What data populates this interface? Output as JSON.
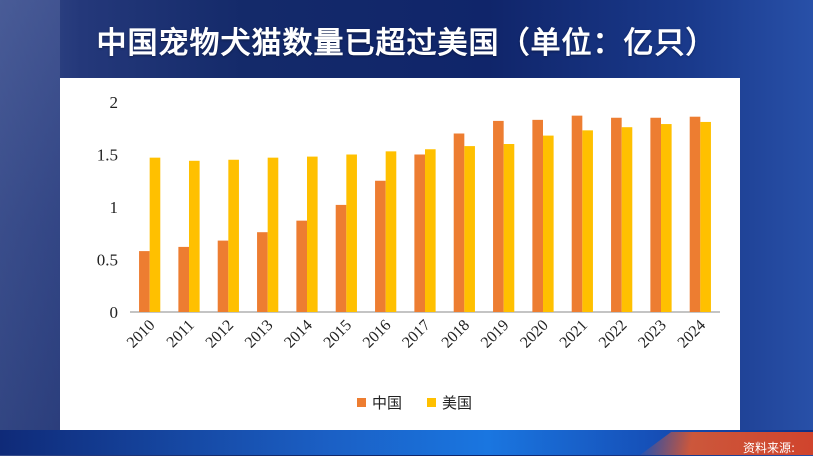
{
  "title": "中国宠物犬猫数量已超过美国（单位：亿只）",
  "source_note": "资料来源:",
  "colors": {
    "china": "#ED7D31",
    "usa": "#FFC000",
    "axis": "#8a8a8a",
    "text": "#222222"
  },
  "chart_data": {
    "type": "bar",
    "title": "中国宠物犬猫数量已超过美国（单位：亿只）",
    "xlabel": "",
    "ylabel": "",
    "categories": [
      "2010",
      "2011",
      "2012",
      "2013",
      "2014",
      "2015",
      "2016",
      "2017",
      "2018",
      "2019",
      "2020",
      "2021",
      "2022",
      "2023",
      "2024"
    ],
    "series": [
      {
        "name": "中国",
        "values": [
          0.58,
          0.62,
          0.68,
          0.76,
          0.87,
          1.02,
          1.25,
          1.5,
          1.7,
          1.82,
          1.83,
          1.87,
          1.85,
          1.85,
          1.86
        ]
      },
      {
        "name": "美国",
        "values": [
          1.47,
          1.44,
          1.45,
          1.47,
          1.48,
          1.5,
          1.53,
          1.55,
          1.58,
          1.6,
          1.68,
          1.73,
          1.76,
          1.79,
          1.81
        ]
      }
    ],
    "ylim": [
      0,
      2
    ],
    "yticks": [
      0,
      0.5,
      1,
      1.5,
      2
    ],
    "grid": false,
    "legend": "bottom-center"
  }
}
